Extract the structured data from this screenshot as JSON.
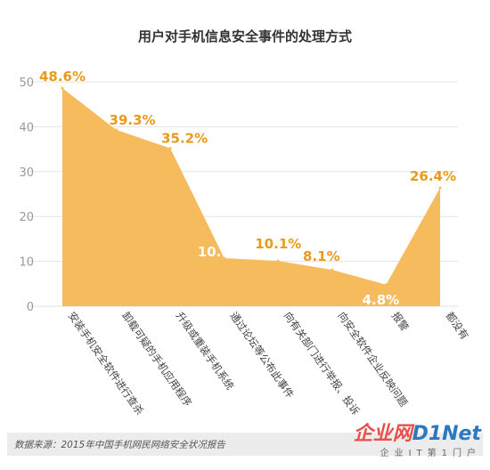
{
  "chart_data": {
    "type": "area",
    "title": "用户对手机信息安全事件的处理方式",
    "categories": [
      "安装手机安全软件进行查杀",
      "卸载可疑的手机应用程序",
      "升级或重装手机系统",
      "通过论坛等公布此事件",
      "向有关部门进行举报、投诉",
      "向安全软件企业反映问题",
      "报警",
      "都没有"
    ],
    "values": [
      48.6,
      39.3,
      35.2,
      10.7,
      10.1,
      8.1,
      4.8,
      26.4
    ],
    "value_labels": [
      "48.6%",
      "39.3%",
      "35.2%",
      "10.7%",
      "10.1%",
      "8.1%",
      "4.8%",
      "26.4%"
    ],
    "yticks": [
      0,
      10,
      20,
      30,
      40,
      50
    ],
    "ylim": [
      0,
      50
    ],
    "grid": true,
    "colors": {
      "area": "#f6bb5c",
      "label": "#e99a1c",
      "label_inside": "#ffffff",
      "grid": "#e3e3e3",
      "tick": "#999999"
    }
  },
  "footer": {
    "source": "数据来源：2015年中国手机网民网络安全状况报告",
    "logo_cn": "企业网",
    "logo_en": "D1Net",
    "logo_sub": "企业IT第1门户"
  }
}
